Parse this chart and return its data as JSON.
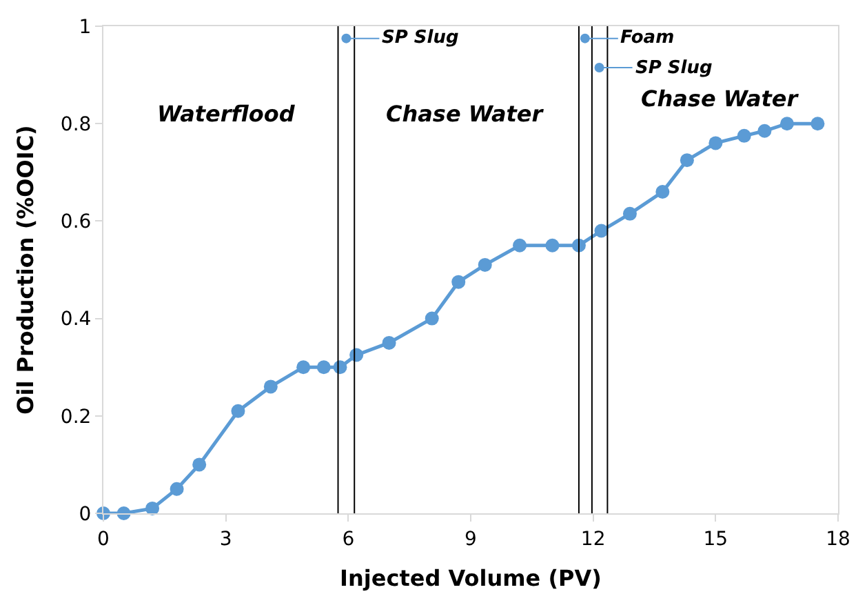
{
  "chart_data": {
    "type": "line",
    "xlabel": "Injected Volume (PV)",
    "ylabel": "Oil Production (%OOIC)",
    "x": [
      0,
      0.5,
      1.2,
      1.8,
      2.35,
      3.3,
      4.1,
      4.9,
      5.4,
      5.8,
      6.2,
      7.0,
      8.05,
      8.7,
      9.35,
      10.2,
      11.0,
      11.65,
      12.2,
      12.9,
      13.7,
      14.3,
      15.0,
      15.7,
      16.2,
      16.75,
      17.5
    ],
    "series": [
      {
        "color": "#5b9bd5",
        "values": [
          0,
          0,
          0.01,
          0.05,
          0.1,
          0.21,
          0.26,
          0.3,
          0.3,
          0.3,
          0.325,
          0.35,
          0.4,
          0.475,
          0.51,
          0.55,
          0.55,
          0.55,
          0.58,
          0.615,
          0.66,
          0.725,
          0.76,
          0.775,
          0.785,
          0.8,
          0.8
        ]
      }
    ],
    "xlim": [
      0,
      18
    ],
    "xticks": [
      0,
      3,
      6,
      9,
      12,
      15,
      18
    ],
    "ylim": [
      0,
      1
    ],
    "yticks": [
      0,
      0.2,
      0.4,
      0.6,
      0.8,
      1
    ],
    "ref_lines": [
      {
        "axis": "x",
        "value": 5.75,
        "color": "#000000"
      },
      {
        "axis": "x",
        "value": 6.15,
        "color": "#000000"
      },
      {
        "axis": "x",
        "value": 11.65,
        "color": "#000000"
      },
      {
        "axis": "x",
        "value": 11.97,
        "color": "#000000"
      },
      {
        "axis": "x",
        "value": 12.35,
        "color": "#000000"
      }
    ],
    "annotations": [
      "Waterflood",
      "Chase Water",
      "Chase Water",
      {
        "text": "SP Slug",
        "x": 5.95,
        "y": 0.975
      },
      {
        "text": "Foam",
        "x": 11.8,
        "y": 0.975
      },
      {
        "text": "SP Slug",
        "x": 12.15,
        "y": 0.915
      }
    ],
    "marker": "circle",
    "line_style": "solid"
  }
}
